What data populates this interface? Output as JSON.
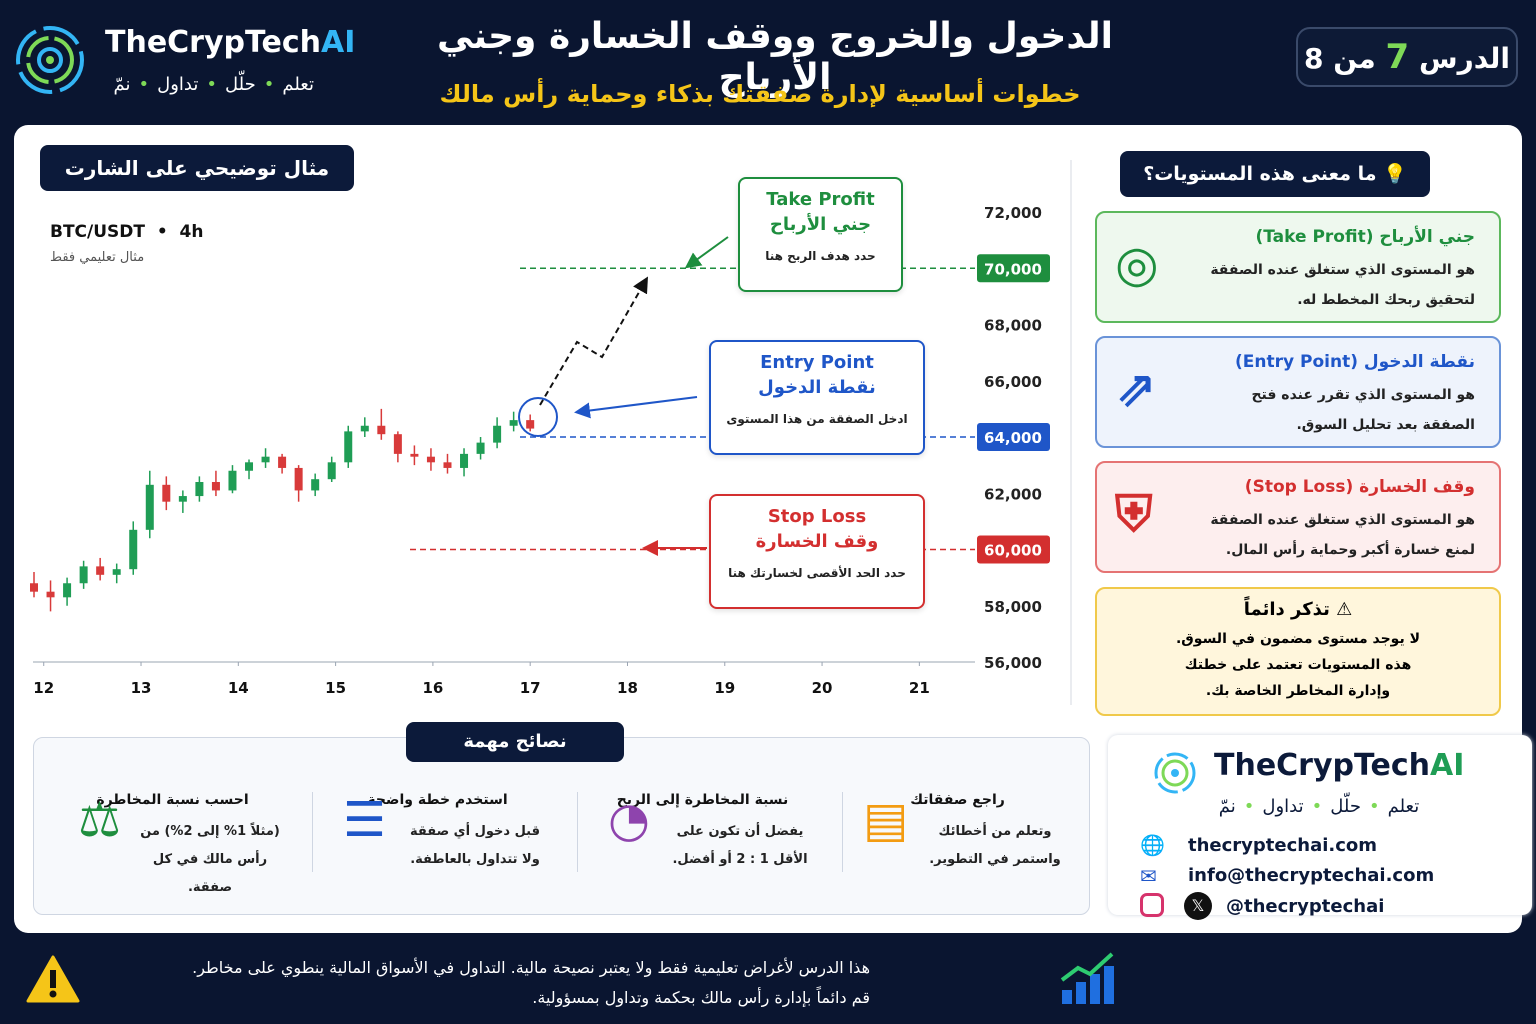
{
  "header": {
    "brand": "TheCrypTech",
    "brand_accent": "AI",
    "tagline": [
      "تعلم",
      "حلّل",
      "تداول",
      "نمّ"
    ],
    "title": "الدخول والخروج ووقف الخسارة وجني الأرباح",
    "subtitle": "خطوات أساسية لإدارة صفقتك بذكاء وحماية رأس مالك",
    "lesson": {
      "prefix": "الدرس",
      "number": "7",
      "suffix": "من 8"
    }
  },
  "chart_data": {
    "type": "candlestick",
    "title": "مثال توضيحي على الشارت",
    "symbol": "BTC/USDT",
    "timeframe": "4h",
    "note": "مثال تعليمي فقط",
    "x": [
      11.9,
      12.07,
      12.24,
      12.41,
      12.58,
      12.75,
      12.92,
      13.09,
      13.26,
      13.43,
      13.6,
      13.77,
      13.94,
      14.11,
      14.28,
      14.45,
      14.62,
      14.79,
      14.96,
      15.13,
      15.3,
      15.47,
      15.64,
      15.81,
      15.98,
      16.15,
      16.32,
      16.49,
      16.66,
      16.83,
      17.0
    ],
    "open": [
      58800,
      58500,
      58300,
      58800,
      59400,
      59100,
      59300,
      60700,
      62300,
      61700,
      61900,
      62400,
      62100,
      62800,
      63100,
      63300,
      62900,
      62100,
      62500,
      63100,
      64200,
      64400,
      64100,
      63400,
      63300,
      63100,
      62900,
      63400,
      63800,
      64400,
      64600
    ],
    "high": [
      59200,
      58900,
      59000,
      59600,
      59700,
      59500,
      61000,
      62800,
      62600,
      62100,
      62600,
      62800,
      63000,
      63200,
      63600,
      63400,
      63000,
      62700,
      63300,
      64400,
      64700,
      65000,
      64200,
      63700,
      63600,
      63400,
      63600,
      64000,
      64700,
      64900,
      64800
    ],
    "low": [
      58300,
      57800,
      58000,
      58600,
      58900,
      58800,
      59100,
      60400,
      61400,
      61300,
      61700,
      61900,
      62000,
      62500,
      62900,
      62700,
      61700,
      61900,
      62400,
      62900,
      64000,
      63900,
      63100,
      63000,
      62800,
      62700,
      62600,
      63200,
      63600,
      64200,
      64200
    ],
    "close": [
      58500,
      58300,
      58800,
      59400,
      59100,
      59300,
      60700,
      62300,
      61700,
      61900,
      62400,
      62100,
      62800,
      63100,
      63300,
      62900,
      62100,
      62500,
      63100,
      64200,
      64400,
      64100,
      63400,
      63300,
      63100,
      62900,
      63400,
      63800,
      64400,
      64600,
      64300
    ],
    "up_color": "#1f9d55",
    "down_color": "#d83a3a",
    "xlim": [
      11.9,
      21.5
    ],
    "xticks": [
      12,
      13,
      14,
      15,
      16,
      17,
      18,
      19,
      20,
      21
    ],
    "ylim": [
      56000,
      72000
    ],
    "yticks": [
      {
        "value": 56000,
        "label": "56,000"
      },
      {
        "value": 58000,
        "label": "58,000"
      },
      {
        "value": 62000,
        "label": "62,000"
      },
      {
        "value": 66000,
        "label": "66,000"
      },
      {
        "value": 68000,
        "label": "68,000"
      },
      {
        "value": 72000,
        "label": "72,000"
      }
    ],
    "levels": [
      {
        "name": "Take Profit",
        "name_ar": "جني الأرباح",
        "note": "حدد هدف الربح هنا",
        "value": 70000,
        "label": "70,000",
        "color": "#1e8e3e"
      },
      {
        "name": "Entry Point",
        "name_ar": "نقطة الدخول",
        "note": "ادخل الصفقة من هذا المستوى",
        "value": 64000,
        "label": "64,000",
        "color": "#1f56c8"
      },
      {
        "name": "Stop Loss",
        "name_ar": "وقف الخسارة",
        "note": "حدد الحد الأقصى لخسارتك هنا",
        "value": 60000,
        "label": "60,000",
        "color": "#d32f2f"
      }
    ]
  },
  "sidebar": {
    "title": "ما معنى هذه المستويات؟",
    "cards": [
      {
        "title": "جني الأرباح (Take Profit)",
        "text": "هو المستوى الذي ستغلق عنده الصفقة لتحقيق ربحك المخطط له."
      },
      {
        "title": "نقطة الدخول (Entry Point)",
        "text": "هو المستوى الذي تقرر عنده فتح الصفقة بعد تحليل السوق."
      },
      {
        "title": "وقف الخسارة (Stop Loss)",
        "text": "هو المستوى الذي ستغلق عنده الصفقة لمنع خسارة أكبر وحماية رأس المال."
      }
    ],
    "reminder": {
      "title": "تذكر دائماً",
      "lines": [
        "لا يوجد مستوى مضمون في السوق.",
        "هذه المستويات تعتمد على خطتك وإدارة المخاطر الخاصة بك."
      ]
    }
  },
  "tips": {
    "title": "نصائح مهمة",
    "items": [
      {
        "title": "راجع صفقاتك",
        "text": "وتعلم من أخطائك واستمر في التطوير."
      },
      {
        "title": "نسبة المخاطرة إلى الربح",
        "text": "يفضل أن تكون على الأقل 1 : 2 أو أفضل."
      },
      {
        "title": "استخدم خطة واضحة",
        "text": "قبل دخول أي صفقة ولا تتداول بالعاطفة."
      },
      {
        "title": "احسب نسبة المخاطرة",
        "text": "(مثلاً 1% إلى 2%) من رأس مالك في كل صفقة."
      }
    ]
  },
  "contact": {
    "website": "thecryptechai.com",
    "email": "info@thecryptechai.com",
    "handle": "@thecryptechai"
  },
  "footer": {
    "lines": [
      "هذا الدرس لأغراض تعليمية فقط ولا يعتبر نصيحة مالية. التداول في الأسواق المالية ينطوي على مخاطر.",
      "قم دائماً بإدارة رأس مالك بحكمة وتداول بمسؤولية."
    ]
  }
}
